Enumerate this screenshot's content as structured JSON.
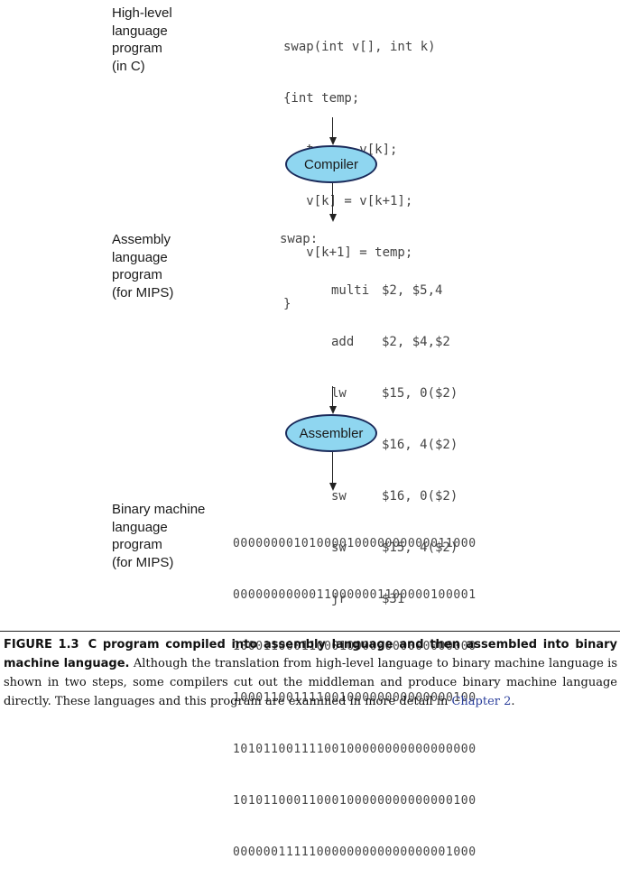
{
  "blocks": {
    "high_level": {
      "label_lines": [
        "High-level",
        "language",
        "program",
        "(in C)"
      ],
      "code_lines": [
        "swap(int v[], int k)",
        "{int temp;",
        "   temp = v[k];",
        "   v[k] = v[k+1];",
        "   v[k+1] = temp;",
        "}"
      ]
    },
    "compiler": {
      "label": "Compiler"
    },
    "assembly": {
      "label_lines": [
        "Assembly",
        "language",
        "program",
        "(for MIPS)"
      ],
      "header": "swap:",
      "instructions": [
        {
          "op": "multi",
          "args": "$2, $5,4"
        },
        {
          "op": "add",
          "args": "$2, $4,$2"
        },
        {
          "op": "lw",
          "args": "$15, 0($2)"
        },
        {
          "op": "lw",
          "args": "$16, 4($2)"
        },
        {
          "op": "sw",
          "args": "$16, 0($2)"
        },
        {
          "op": "sw",
          "args": "$15, 4($2)"
        },
        {
          "op": "jr",
          "args": "$31"
        }
      ]
    },
    "assembler": {
      "label": "Assembler"
    },
    "binary": {
      "label_lines": [
        "Binary machine",
        "language",
        "program",
        "(for MIPS)"
      ],
      "lines": [
        "00000000101000010000000000011000",
        "00000000000110000001100000100001",
        "10001100011000100000000000000000",
        "10001100111100100000000000000100",
        "10101100111100100000000000000000",
        "10101100011000100000000000000100",
        "00000011111000000000000000001000"
      ]
    }
  },
  "caption": {
    "figure_number": "FIGURE 1.3",
    "title": "C program compiled into assembly language and then assembled into binary machine language.",
    "body": " Although the translation from high-level language to binary machine language is shown in two steps, some compilers cut out the middleman and produce binary machine language directly. These languages and this program are examined in more detail in ",
    "link_text": "Chapter 2",
    "end": "."
  },
  "colors": {
    "ellipse_fill": "#8fd6f0",
    "ellipse_border": "#1a2a5a",
    "link": "#2b3f9c"
  }
}
